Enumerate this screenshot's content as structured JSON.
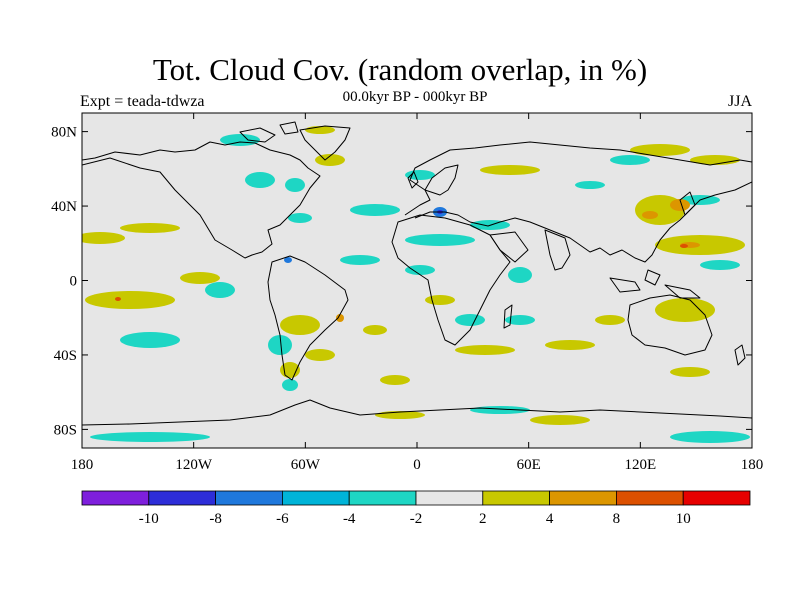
{
  "title": "Tot. Cloud Cov. (random overlap, in %)",
  "subtitle": "00.0kyr BP - 000kyr BP",
  "left_label": "Expt = teada-tdwza",
  "right_label": "JJA",
  "colors": {
    "land_outline": "#000000",
    "background": "#e6e6e6"
  },
  "map": {
    "lon_range": [
      -180,
      180
    ],
    "lat_range": [
      -90,
      90
    ],
    "lon_ticks": [
      "180",
      "120W",
      "60W",
      "0",
      "60E",
      "120E",
      "180"
    ],
    "lat_ticks": [
      "80N",
      "40N",
      "0",
      "40S",
      "80S"
    ]
  },
  "colorbar": {
    "colors": [
      "#7e1fdc",
      "#2d2dd8",
      "#1f78dc",
      "#00b4d8",
      "#1ed6c4",
      "#e6e6e6",
      "#c8c800",
      "#dc9600",
      "#dc5000",
      "#e60000"
    ],
    "labels": [
      "-10",
      "-8",
      "-6",
      "-4",
      "-2",
      "2",
      "4",
      "8",
      "10"
    ]
  }
}
